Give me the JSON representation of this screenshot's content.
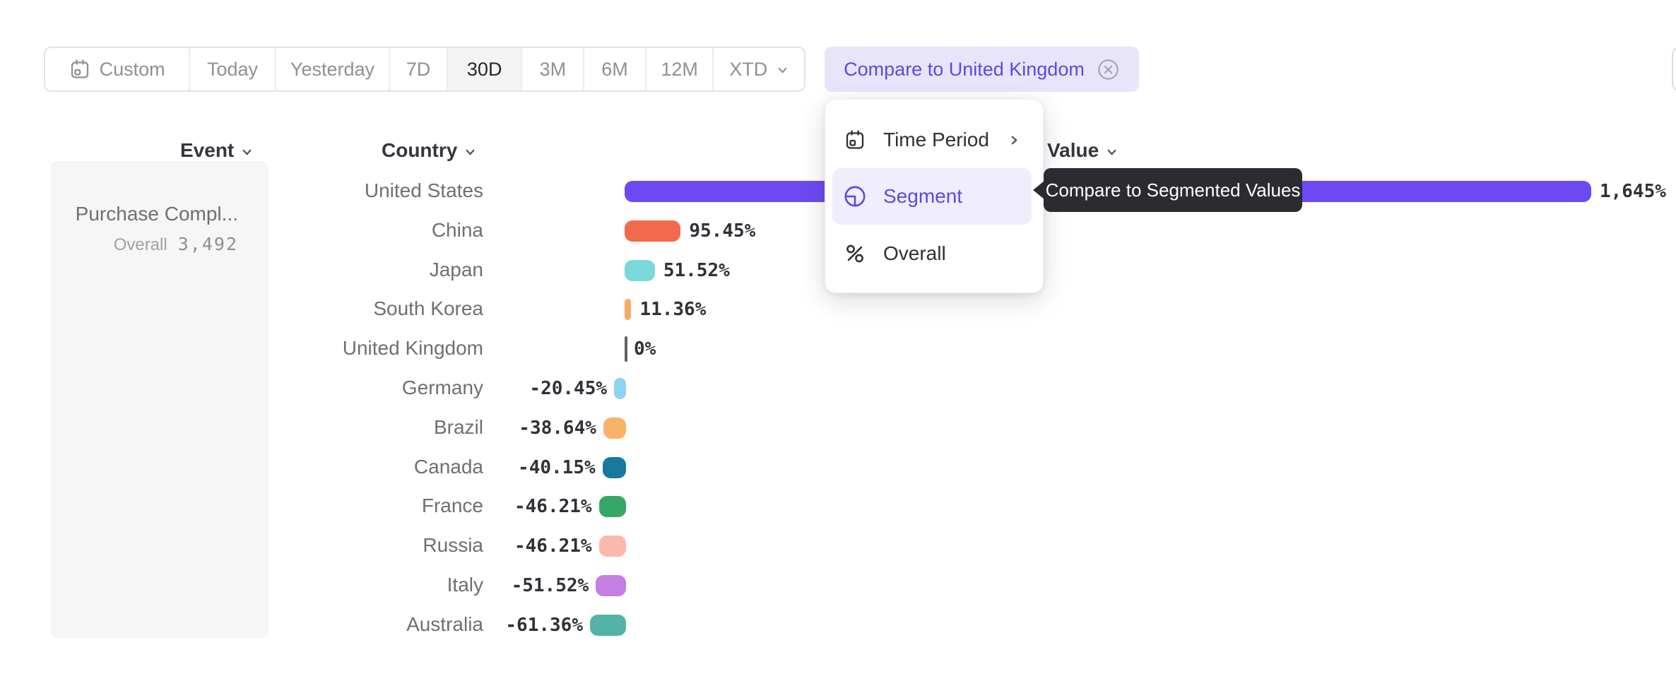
{
  "date_range_toolbar": {
    "items": [
      {
        "label": "Custom",
        "icon": "calendar-icon",
        "selected": false,
        "has_dropdown": false
      },
      {
        "label": "Today",
        "icon": null,
        "selected": false,
        "has_dropdown": false
      },
      {
        "label": "Yesterday",
        "icon": null,
        "selected": false,
        "has_dropdown": false
      },
      {
        "label": "7D",
        "icon": null,
        "selected": false,
        "has_dropdown": false
      },
      {
        "label": "30D",
        "icon": null,
        "selected": true,
        "has_dropdown": false
      },
      {
        "label": "3M",
        "icon": null,
        "selected": false,
        "has_dropdown": false
      },
      {
        "label": "6M",
        "icon": null,
        "selected": false,
        "has_dropdown": false
      },
      {
        "label": "12M",
        "icon": null,
        "selected": false,
        "has_dropdown": false
      },
      {
        "label": "XTD",
        "icon": null,
        "selected": false,
        "has_dropdown": true
      }
    ]
  },
  "compare_chip": {
    "label": "Compare to United Kingdom",
    "close_icon": "close-circle-icon"
  },
  "column_headers": {
    "event": "Event",
    "country": "Country",
    "value": "Value"
  },
  "event_panel": {
    "event_name": "Purchase Compl...",
    "overall_label": "Overall",
    "overall_value": "3,492"
  },
  "compare_menu": {
    "items": [
      {
        "label": "Time Period",
        "icon": "calendar-icon",
        "has_submenu": true,
        "selected": false
      },
      {
        "label": "Segment",
        "icon": "segment-icon",
        "has_submenu": false,
        "selected": true
      },
      {
        "label": "Overall",
        "icon": "percent-icon",
        "has_submenu": false,
        "selected": false
      }
    ]
  },
  "tooltip": {
    "text": "Compare to Segmented Values"
  },
  "chart_data": {
    "type": "bar",
    "orientation": "horizontal",
    "title": "",
    "xlabel": "Value",
    "ylabel": "Country",
    "series_event": "Purchase Compl...",
    "baseline_note": "United Kingdom = 0%",
    "categories": [
      "United States",
      "China",
      "Japan",
      "South Korea",
      "United Kingdom",
      "Germany",
      "Brazil",
      "Canada",
      "France",
      "Russia",
      "Italy",
      "Australia"
    ],
    "values": [
      1645,
      95.45,
      51.52,
      11.36,
      0,
      -20.45,
      -38.64,
      -40.15,
      -46.21,
      -46.21,
      -51.52,
      -61.36
    ],
    "value_labels": [
      "1,645%",
      "95.45%",
      "51.52%",
      "11.36%",
      "0%",
      "-20.45%",
      "-38.64%",
      "-40.15%",
      "-46.21%",
      "-46.21%",
      "-51.52%",
      "-61.36%"
    ],
    "bar_colors": [
      "#6C49F2",
      "#F2694C",
      "#7BD8DB",
      "#F9AA60",
      "#606165",
      "#8FD2F2",
      "#F9B269",
      "#19789E",
      "#35A865",
      "#FBB9AB",
      "#C47EE4",
      "#53B3A6"
    ]
  },
  "colors": {
    "accent_purple": "#5B4AE0",
    "chip_bg": "#E8E5FA",
    "menu_highlight_bg": "#F0EDFC",
    "tooltip_bg": "#2B2B31",
    "selected_range_bg": "#F4F4F5"
  }
}
